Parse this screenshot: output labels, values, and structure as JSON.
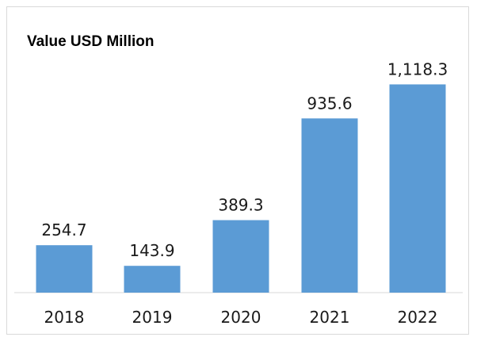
{
  "chart_data": {
    "type": "bar",
    "title": "Value USD Million",
    "categories": [
      "2018",
      "2019",
      "2020",
      "2021",
      "2022"
    ],
    "values": [
      254.7,
      143.9,
      389.3,
      935.6,
      1118.3
    ],
    "data_labels": [
      "254.7",
      "143.9",
      "389.3",
      "935.6",
      "1,118.3"
    ],
    "bar_color": "#5b9bd5",
    "grid": false,
    "legend": "none"
  }
}
